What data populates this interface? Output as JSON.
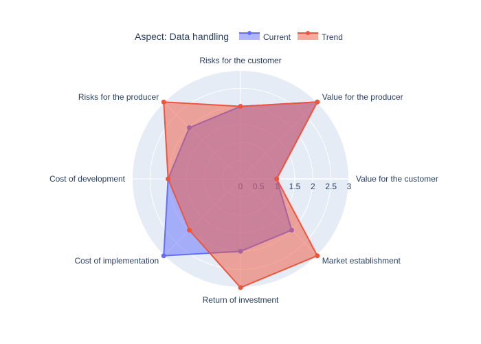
{
  "chart_data": {
    "type": "radar",
    "title": "Aspect: Data handling",
    "categories": [
      "Value for the customer",
      "Value for the producer",
      "Risks for the customer",
      "Risks for the producer",
      "Cost of development",
      "Cost of implementation",
      "Return of investment",
      "Market establishment"
    ],
    "radial_ticks": [
      "0",
      "0.5",
      "1",
      "1.5",
      "2",
      "2.5",
      "3"
    ],
    "rlim": [
      0,
      3
    ],
    "legend_position": "top",
    "series": [
      {
        "name": "Current",
        "color": "#636efa",
        "values": [
          1,
          3,
          2,
          2,
          2,
          3,
          2,
          2
        ]
      },
      {
        "name": "Trend",
        "color": "#ef553b",
        "values": [
          1,
          3,
          2,
          3,
          2,
          2,
          3,
          3
        ]
      }
    ]
  }
}
